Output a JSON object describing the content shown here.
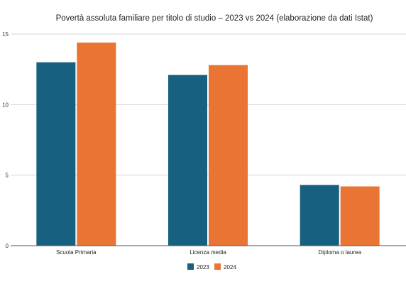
{
  "chart_data": {
    "type": "bar",
    "title": "Povertà assoluta familiare per titolo di studio – 2023 vs 2024 (elaborazione da dati Istat)",
    "xlabel": "",
    "ylabel": "",
    "categories": [
      "Scuola Primaria",
      "Licenza media",
      "Diploma o laurea"
    ],
    "series": [
      {
        "name": "2023",
        "values": [
          13.0,
          12.1,
          4.3
        ]
      },
      {
        "name": "2024",
        "values": [
          14.4,
          12.8,
          4.2
        ]
      }
    ],
    "ylim": [
      0,
      15
    ],
    "yticks": [
      0,
      5,
      10,
      15
    ],
    "grid": true,
    "legend_position": "bottom",
    "colors": {
      "2023": "#17607f",
      "2024": "#e97434"
    }
  }
}
